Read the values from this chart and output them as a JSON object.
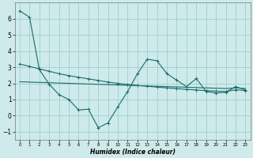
{
  "xlabel": "Humidex (Indice chaleur)",
  "background_color": "#ceeaea",
  "grid_color": "#9fcfcf",
  "line_color": "#1a6b6b",
  "xlim": [
    -0.5,
    23.5
  ],
  "ylim": [
    -1.5,
    7.0
  ],
  "xticks": [
    0,
    1,
    2,
    3,
    4,
    5,
    6,
    7,
    8,
    9,
    10,
    11,
    12,
    13,
    14,
    15,
    16,
    17,
    18,
    19,
    20,
    21,
    22,
    23
  ],
  "yticks": [
    -1,
    0,
    1,
    2,
    3,
    4,
    5,
    6
  ],
  "series1_x": [
    0,
    1,
    2,
    3,
    4,
    5,
    6,
    7,
    8,
    9,
    10,
    11,
    12,
    13,
    14,
    15,
    16,
    17,
    18,
    19,
    20,
    21,
    22,
    23
  ],
  "series1_y": [
    6.5,
    6.1,
    2.85,
    1.95,
    1.3,
    1.0,
    0.35,
    0.4,
    -0.75,
    -0.45,
    0.55,
    1.5,
    2.6,
    3.5,
    3.4,
    2.6,
    2.2,
    1.8,
    2.3,
    1.5,
    1.4,
    1.45,
    1.8,
    1.6
  ],
  "series2_x": [
    0,
    1,
    2,
    3,
    4,
    5,
    6,
    7,
    8,
    9,
    10,
    11,
    12,
    13,
    14,
    15,
    16,
    17,
    18,
    19,
    20,
    21,
    22,
    23
  ],
  "series2_y": [
    3.2,
    3.05,
    2.9,
    2.75,
    2.6,
    2.48,
    2.38,
    2.28,
    2.18,
    2.08,
    2.0,
    1.93,
    1.87,
    1.82,
    1.77,
    1.72,
    1.67,
    1.63,
    1.59,
    1.55,
    1.52,
    1.49,
    1.6,
    1.56
  ],
  "series3_x": [
    0,
    1,
    2,
    3,
    4,
    5,
    6,
    7,
    8,
    9,
    10,
    11,
    12,
    13,
    14,
    15,
    16,
    17,
    18,
    19,
    20,
    21,
    22,
    23
  ],
  "series3_y": [
    2.1,
    2.08,
    2.06,
    2.04,
    2.02,
    2.0,
    1.98,
    1.96,
    1.94,
    1.92,
    1.9,
    1.88,
    1.86,
    1.84,
    1.82,
    1.8,
    1.78,
    1.76,
    1.74,
    1.72,
    1.7,
    1.68,
    1.72,
    1.68
  ]
}
